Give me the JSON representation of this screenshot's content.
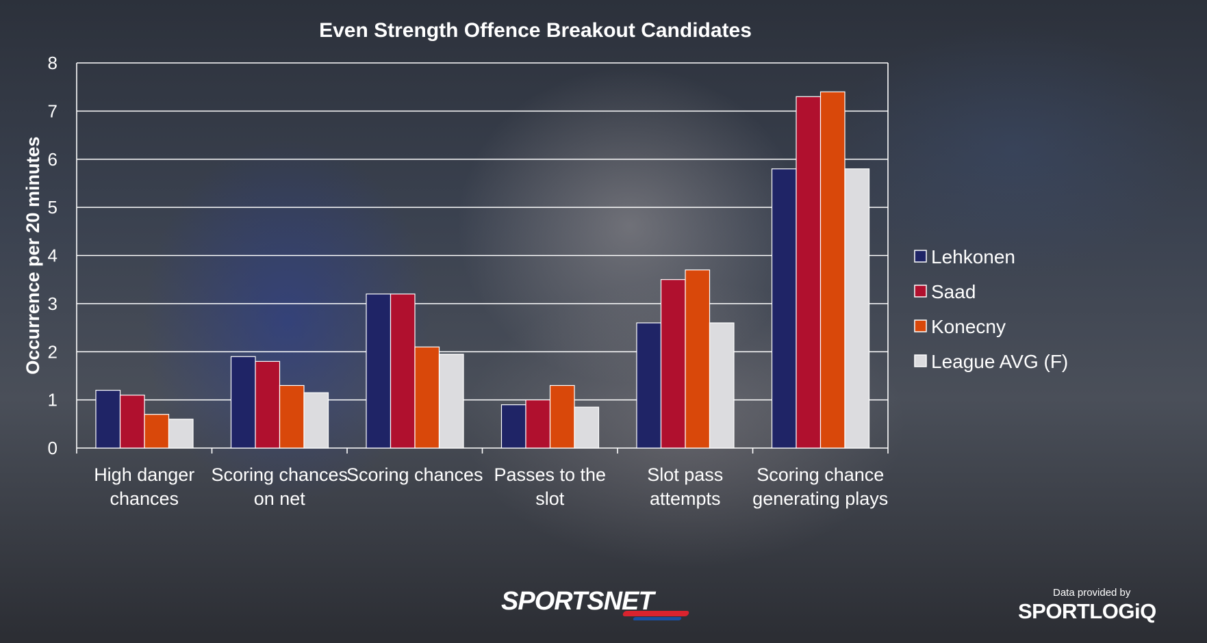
{
  "chart_data": {
    "type": "bar",
    "title": "Even Strength Offence Breakout Candidates",
    "ylabel": "Occurrence per 20 minutes",
    "xlabel": "",
    "ylim": [
      0,
      8
    ],
    "yticks": [
      0,
      1,
      2,
      3,
      4,
      5,
      6,
      7,
      8
    ],
    "grid": true,
    "legend_position": "right",
    "categories": [
      [
        "High danger",
        "chances"
      ],
      [
        "Scoring chances",
        "on net"
      ],
      [
        "Scoring chances"
      ],
      [
        "Passes to the",
        "slot"
      ],
      [
        "Slot pass",
        "attempts"
      ],
      [
        "Scoring chance",
        "generating plays"
      ]
    ],
    "series": [
      {
        "name": "Lehkonen",
        "color": "#1f2466",
        "values": [
          1.2,
          1.9,
          3.2,
          0.9,
          2.6,
          5.8
        ]
      },
      {
        "name": "Saad",
        "color": "#b0102e",
        "values": [
          1.1,
          1.8,
          3.2,
          1.0,
          3.5,
          7.3
        ]
      },
      {
        "name": "Konecny",
        "color": "#d9480a",
        "values": [
          0.7,
          1.3,
          2.1,
          1.3,
          3.7,
          7.4
        ]
      },
      {
        "name": "League AVG (F)",
        "color": "#dcdcdf",
        "values": [
          0.6,
          1.15,
          1.95,
          0.85,
          2.6,
          5.8
        ]
      }
    ]
  },
  "branding": {
    "network": "SPORTSNET",
    "data_provided_by": "Data provided by",
    "provider": "SPORTLOGiQ"
  }
}
